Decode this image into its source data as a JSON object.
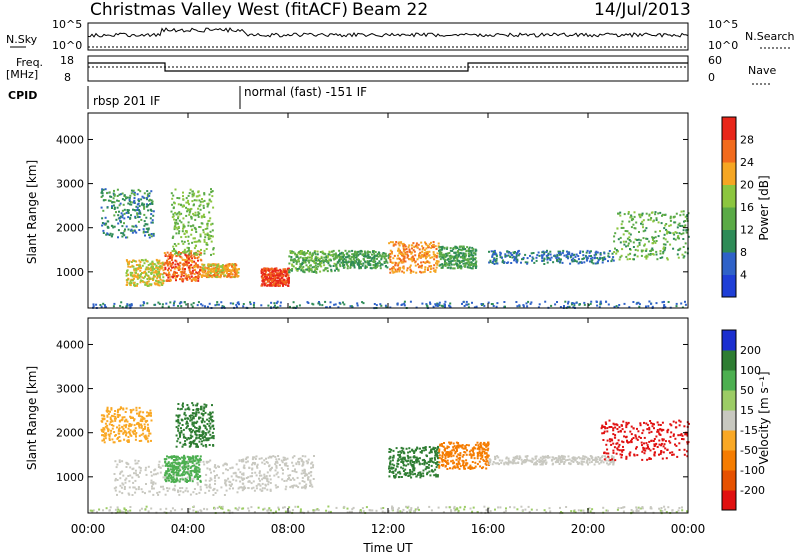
{
  "header": {
    "title": "Christmas Valley West (fitACF)",
    "beam": "Beam 22",
    "date": "14/Jul/2013"
  },
  "top_panels": {
    "nsky_label": "N.Sky",
    "nsky_ticks": [
      "10^5",
      "10^0"
    ],
    "nsearch_label": "N.Search",
    "freq_label": "Freq.",
    "freq_unit": "[MHz]",
    "freq_ticks": [
      "18",
      "8"
    ],
    "nave_ticks": [
      "60",
      "0"
    ],
    "nave_label": "Nave",
    "cpid_label": "CPID",
    "cpid_1": "rbsp 201 IF",
    "cpid_2": "normal (fast) -151 IF"
  },
  "colors": {
    "power_scale": [
      "#1f3fd6",
      "#2f62c8",
      "#2e8b57",
      "#5aaa46",
      "#8cc63f",
      "#f5a623",
      "#f26b1d",
      "#e8261a"
    ],
    "velocity_scale": [
      "#1b2fcf",
      "#2e7d32",
      "#4caf50",
      "#9ccc65",
      "#c8c8c0",
      "#f9a825",
      "#f57c00",
      "#e65100",
      "#e01010"
    ]
  },
  "chart_data": [
    {
      "type": "heatmap",
      "name": "power",
      "ylabel": "Slant Range [km]",
      "ylim": [
        180,
        4600
      ],
      "yticks": [
        "4000",
        "3000",
        "2000",
        "1000"
      ],
      "colorbar_label": "Power [dB]",
      "colorbar_ticks": [
        "28",
        "24",
        "20",
        "16",
        "12",
        "8",
        "4"
      ],
      "echo_regions": [
        {
          "t": [
            0.5,
            2.6
          ],
          "r": [
            1800,
            2900
          ],
          "level": 10
        },
        {
          "t": [
            1.5,
            3.0
          ],
          "r": [
            700,
            1300
          ],
          "level": 20
        },
        {
          "t": [
            3.0,
            4.5
          ],
          "r": [
            800,
            1500
          ],
          "level": 26
        },
        {
          "t": [
            3.3,
            5.0
          ],
          "r": [
            1400,
            2900
          ],
          "level": 16
        },
        {
          "t": [
            4.5,
            6.0
          ],
          "r": [
            900,
            1200
          ],
          "level": 22
        },
        {
          "t": [
            6.9,
            8.0
          ],
          "r": [
            700,
            1100
          ],
          "level": 28
        },
        {
          "t": [
            8.0,
            10.0
          ],
          "r": [
            1000,
            1500
          ],
          "level": 14
        },
        {
          "t": [
            10.0,
            12.0
          ],
          "r": [
            1100,
            1500
          ],
          "level": 12
        },
        {
          "t": [
            12.0,
            14.0
          ],
          "r": [
            1000,
            1700
          ],
          "level": 24
        },
        {
          "t": [
            14.0,
            15.5
          ],
          "r": [
            1100,
            1600
          ],
          "level": 12
        },
        {
          "t": [
            16.0,
            21.0
          ],
          "r": [
            1200,
            1500
          ],
          "level": 8
        },
        {
          "t": [
            21.0,
            24.0
          ],
          "r": [
            1300,
            2400
          ],
          "level": 14
        }
      ]
    },
    {
      "type": "heatmap",
      "name": "velocity",
      "xlabel": "Time UT",
      "xticks": [
        "00:00",
        "04:00",
        "08:00",
        "12:00",
        "16:00",
        "20:00",
        "00:00"
      ],
      "xlim": [
        0,
        24
      ],
      "ylabel": "Slant Range [km]",
      "ylim": [
        180,
        4600
      ],
      "yticks": [
        "4000",
        "3000",
        "2000",
        "1000"
      ],
      "colorbar_label": "Velocity [m s⁻¹]",
      "colorbar_ticks": [
        "200",
        "100",
        "50",
        "15",
        "-15",
        "-50",
        "-100",
        "-200"
      ],
      "echo_regions": [
        {
          "t": [
            0.5,
            2.5
          ],
          "r": [
            1800,
            2600
          ],
          "v": -30
        },
        {
          "t": [
            1.0,
            6.0
          ],
          "r": [
            600,
            1400
          ],
          "v": 0
        },
        {
          "t": [
            3.5,
            5.0
          ],
          "r": [
            1700,
            2700
          ],
          "v": 180
        },
        {
          "t": [
            3.0,
            4.5
          ],
          "r": [
            900,
            1500
          ],
          "v": 60
        },
        {
          "t": [
            6.0,
            9.0
          ],
          "r": [
            700,
            1500
          ],
          "v": 0
        },
        {
          "t": [
            12.0,
            14.0
          ],
          "r": [
            1000,
            1700
          ],
          "v": 150
        },
        {
          "t": [
            14.0,
            16.0
          ],
          "r": [
            1200,
            1800
          ],
          "v": -60
        },
        {
          "t": [
            16.0,
            21.0
          ],
          "r": [
            1300,
            1500
          ],
          "v": 0
        },
        {
          "t": [
            20.5,
            24.0
          ],
          "r": [
            1400,
            2300
          ],
          "v": -220
        }
      ]
    }
  ]
}
